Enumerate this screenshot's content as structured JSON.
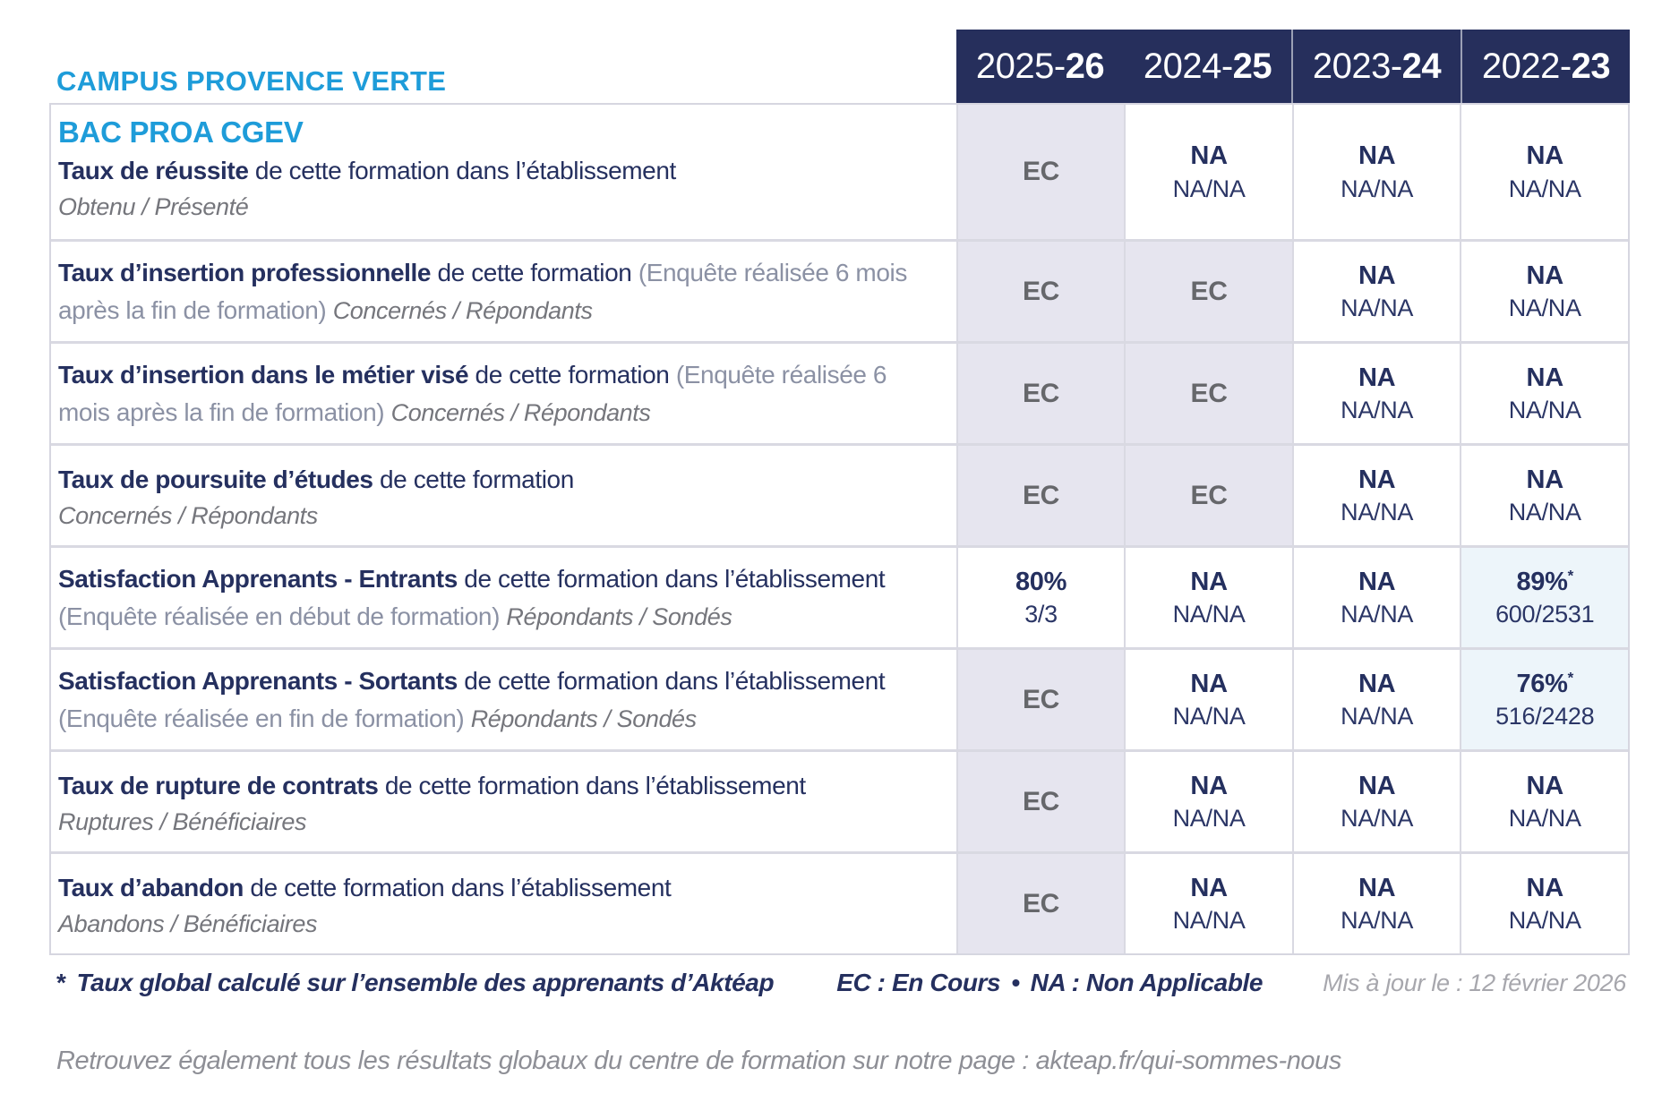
{
  "header": {
    "campus": "CAMPUS PROVENCE VERTE",
    "program": "BAC PROA CGEV",
    "columns": [
      {
        "start": "2025-",
        "end": "26"
      },
      {
        "start": "2024-",
        "end": "25"
      },
      {
        "start": "2023-",
        "end": "24"
      },
      {
        "start": "2022-",
        "end": "23"
      }
    ]
  },
  "rows": [
    {
      "title": "Taux de réussite",
      "desc": "de cette formation dans l’établissement",
      "sub_block": "Obtenu / Présenté",
      "cells": [
        {
          "t": "ec",
          "v": "EC"
        },
        {
          "t": "na",
          "v": "NA",
          "f": "NA/NA"
        },
        {
          "t": "na",
          "v": "NA",
          "f": "NA/NA"
        },
        {
          "t": "na",
          "v": "NA",
          "f": "NA/NA"
        }
      ]
    },
    {
      "title": "Taux d’insertion professionnelle",
      "desc": "de cette formation",
      "paren": "(Enquête réalisée 6 mois après la fin de formation)",
      "sub_inline": "Concernés / Répondants",
      "cells": [
        {
          "t": "ec",
          "v": "EC"
        },
        {
          "t": "ec",
          "v": "EC"
        },
        {
          "t": "na",
          "v": "NA",
          "f": "NA/NA"
        },
        {
          "t": "na",
          "v": "NA",
          "f": "NA/NA"
        }
      ]
    },
    {
      "title": "Taux d’insertion dans le métier visé",
      "desc": "de cette formation",
      "paren": "(Enquête réalisée 6 mois après la fin de formation)",
      "sub_inline": "Concernés / Répondants",
      "cells": [
        {
          "t": "ec",
          "v": "EC"
        },
        {
          "t": "ec",
          "v": "EC"
        },
        {
          "t": "na",
          "v": "NA",
          "f": "NA/NA"
        },
        {
          "t": "na",
          "v": "NA",
          "f": "NA/NA"
        }
      ]
    },
    {
      "title": "Taux de poursuite d’études",
      "desc": "de cette formation",
      "sub_block": "Concernés / Répondants",
      "cells": [
        {
          "t": "ec",
          "v": "EC"
        },
        {
          "t": "ec",
          "v": "EC"
        },
        {
          "t": "na",
          "v": "NA",
          "f": "NA/NA"
        },
        {
          "t": "na",
          "v": "NA",
          "f": "NA/NA"
        }
      ]
    },
    {
      "title": "Satisfaction Apprenants - Entrants",
      "desc": "de cette formation dans l’établissement",
      "paren": "(Enquête réalisée en début de formation)",
      "sub_inline": "Répondants / Sondés",
      "cells": [
        {
          "t": "pct",
          "v": "80%",
          "f": "3/3"
        },
        {
          "t": "na",
          "v": "NA",
          "f": "NA/NA"
        },
        {
          "t": "na",
          "v": "NA",
          "f": "NA/NA"
        },
        {
          "t": "hl",
          "v": "89%",
          "star": "*",
          "f": "600/2531"
        }
      ]
    },
    {
      "title": "Satisfaction Apprenants - Sortants",
      "desc": "de cette formation dans l’établissement",
      "paren": "(Enquête réalisée en fin de formation)",
      "sub_inline": "Répondants / Sondés",
      "cells": [
        {
          "t": "ec",
          "v": "EC"
        },
        {
          "t": "na",
          "v": "NA",
          "f": "NA/NA"
        },
        {
          "t": "na",
          "v": "NA",
          "f": "NA/NA"
        },
        {
          "t": "hl",
          "v": "76%",
          "star": "*",
          "f": "516/2428"
        }
      ]
    },
    {
      "title": "Taux de rupture de contrats",
      "desc": "de cette formation dans l’établissement",
      "sub_block": "Ruptures / Bénéficiaires",
      "cells": [
        {
          "t": "ec",
          "v": "EC"
        },
        {
          "t": "na",
          "v": "NA",
          "f": "NA/NA"
        },
        {
          "t": "na",
          "v": "NA",
          "f": "NA/NA"
        },
        {
          "t": "na",
          "v": "NA",
          "f": "NA/NA"
        }
      ]
    },
    {
      "title": "Taux d’abandon",
      "desc": "de cette formation dans l’établissement",
      "sub_block": "Abandons / Bénéficiaires",
      "cells": [
        {
          "t": "ec",
          "v": "EC"
        },
        {
          "t": "na",
          "v": "NA",
          "f": "NA/NA"
        },
        {
          "t": "na",
          "v": "NA",
          "f": "NA/NA"
        },
        {
          "t": "na",
          "v": "NA",
          "f": "NA/NA"
        }
      ]
    }
  ],
  "footer": {
    "star": "*",
    "note": "Taux global calculé sur l’ensemble des apprenants d’Aktéap",
    "legend_ec": "EC : En Cours",
    "legend_sep": "•",
    "legend_na": "NA : Non Applicable",
    "updated": "Mis à jour le : 12 février 2026",
    "bottom": "Retrouvez également tous les résultats globaux du centre de formation sur notre page : akteap.fr/qui-sommes-nous"
  },
  "colors": {
    "brand_blue": "#1E9CD9",
    "navy": "#25305F",
    "header_bg": "#262F5C",
    "ec_cell_bg": "#E6E5EF",
    "highlight_cell_bg": "#EDF5FA",
    "border": "#D6D6E0"
  }
}
